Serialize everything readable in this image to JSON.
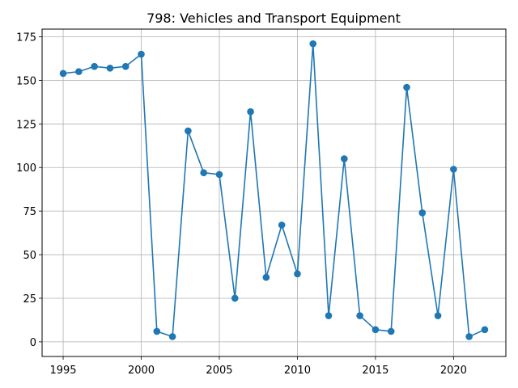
{
  "chart_data": {
    "type": "line",
    "title": "798: Vehicles and Transport Equipment",
    "xlabel": "",
    "ylabel": "",
    "xlim": [
      1993.65,
      2023.35
    ],
    "ylim": [
      -8.4,
      179.4
    ],
    "grid": true,
    "x_ticks": [
      1995,
      2000,
      2005,
      2010,
      2015,
      2020
    ],
    "y_ticks": [
      0,
      25,
      50,
      75,
      100,
      125,
      150,
      175
    ],
    "series": [
      {
        "color": "#1f77b4",
        "marker": "circle",
        "x": [
          1995,
          1996,
          1997,
          1998,
          1999,
          2000,
          2001,
          2002,
          2003,
          2004,
          2005,
          2006,
          2007,
          2008,
          2009,
          2010,
          2011,
          2012,
          2013,
          2014,
          2015,
          2016,
          2017,
          2018,
          2019,
          2020,
          2021,
          2022
        ],
        "y": [
          154,
          155,
          158,
          157,
          158,
          165,
          6,
          3,
          121,
          97,
          96,
          25,
          132,
          37,
          67,
          39,
          171,
          15,
          105,
          15,
          7,
          6,
          146,
          74,
          15,
          99,
          3,
          7
        ]
      }
    ]
  }
}
